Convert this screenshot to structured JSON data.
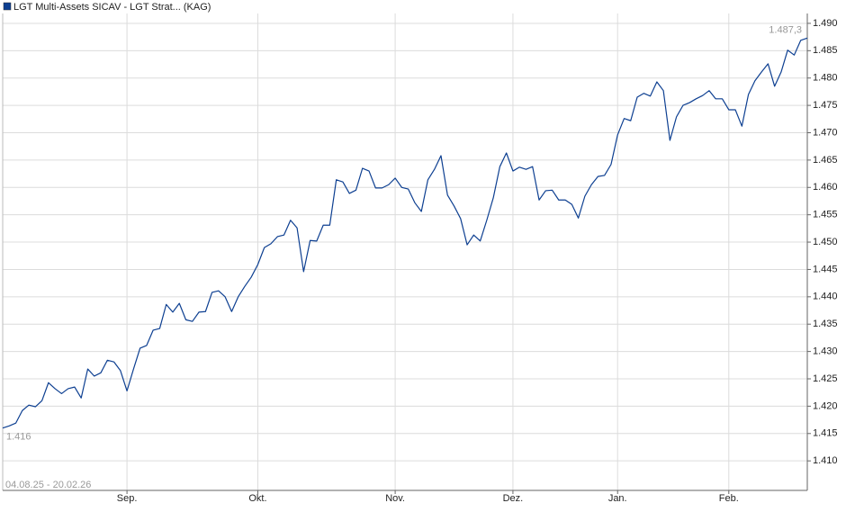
{
  "chart_data": {
    "type": "line",
    "legend_title": "LGT Multi-Assets SICAV - LGT Strat... (KAG)",
    "date_range": "04.08.25 - 20.02.26",
    "categories": [
      null,
      null,
      null,
      null,
      null,
      null,
      null,
      null,
      null,
      null,
      null,
      null,
      null,
      null,
      null,
      null,
      null,
      null,
      null,
      "Sep.",
      null,
      null,
      null,
      null,
      null,
      null,
      null,
      null,
      null,
      null,
      null,
      null,
      null,
      null,
      null,
      null,
      null,
      null,
      null,
      "Okt.",
      null,
      null,
      null,
      null,
      null,
      null,
      null,
      null,
      null,
      null,
      null,
      null,
      null,
      null,
      null,
      null,
      null,
      null,
      null,
      null,
      "Nov.",
      null,
      null,
      null,
      null,
      null,
      null,
      null,
      null,
      null,
      null,
      null,
      null,
      null,
      null,
      null,
      null,
      null,
      "Dez.",
      null,
      null,
      null,
      null,
      null,
      null,
      null,
      null,
      null,
      null,
      null,
      null,
      null,
      null,
      null,
      "Jan.",
      null,
      null,
      null,
      null,
      null,
      null,
      null,
      null,
      null,
      null,
      null,
      null,
      null,
      null,
      null,
      null,
      "Feb.",
      null,
      null,
      null,
      null,
      null,
      null,
      null,
      null,
      null,
      null,
      null,
      null
    ],
    "series": [
      {
        "name": "LGT Multi-Assets SICAV - LGT Strat... (KAG)",
        "color": "#0d3f91",
        "values": [
          1416,
          1416.4,
          1416.9,
          1419.2,
          1420.2,
          1419.9,
          1421.0,
          1424.3,
          1423.2,
          1422.3,
          1423.2,
          1423.5,
          1421.5,
          1426.8,
          1425.5,
          1426.1,
          1428.4,
          1428.1,
          1426.5,
          1422.8,
          1426.8,
          1430.6,
          1431.1,
          1433.9,
          1434.2,
          1438.6,
          1437.2,
          1438.8,
          1435.8,
          1435.5,
          1437.2,
          1437.3,
          1440.8,
          1441.1,
          1440.0,
          1437.3,
          1440.0,
          1441.9,
          1443.6,
          1445.9,
          1449.0,
          1449.7,
          1451.0,
          1451.3,
          1454.0,
          1452.6,
          1444.6,
          1450.3,
          1450.2,
          1453.1,
          1453.1,
          1461.4,
          1461.0,
          1458.9,
          1459.5,
          1463.5,
          1463.0,
          1459.9,
          1459.9,
          1460.5,
          1461.7,
          1460.0,
          1459.7,
          1457.2,
          1455.6,
          1461.4,
          1463.3,
          1465.8,
          1458.6,
          1456.6,
          1454.3,
          1449.5,
          1451.3,
          1450.2,
          1454.0,
          1458.1,
          1463.8,
          1466.3,
          1463.0,
          1463.7,
          1463.3,
          1463.8,
          1457.7,
          1459.4,
          1459.5,
          1457.7,
          1457.7,
          1456.9,
          1454.4,
          1458.4,
          1460.5,
          1462.0,
          1462.2,
          1464.2,
          1469.6,
          1472.6,
          1472.2,
          1476.5,
          1477.2,
          1476.7,
          1479.3,
          1477.7,
          1468.6,
          1472.9,
          1475.0,
          1475.5,
          1476.2,
          1476.8,
          1477.7,
          1476.2,
          1476.2,
          1474.2,
          1474.2,
          1471.2,
          1477.0,
          1479.5,
          1481.1,
          1482.6,
          1478.5,
          1481.1,
          1485.1,
          1484.2,
          1486.9,
          1487.3
        ]
      }
    ],
    "annotations": [
      {
        "text": "1.487,3",
        "value": 1487.3
      },
      {
        "text": "1.416",
        "value": 1416
      }
    ],
    "ylim": [
      1404.6,
      1491.8
    ],
    "yticks": [
      {
        "value": 1410,
        "label": "1.410"
      },
      {
        "value": 1415,
        "label": "1.415"
      },
      {
        "value": 1420,
        "label": "1.420"
      },
      {
        "value": 1425,
        "label": "1.425"
      },
      {
        "value": 1430,
        "label": "1.430"
      },
      {
        "value": 1435,
        "label": "1.435"
      },
      {
        "value": 1440,
        "label": "1.440"
      },
      {
        "value": 1445,
        "label": "1.445"
      },
      {
        "value": 1450,
        "label": "1.450"
      },
      {
        "value": 1455,
        "label": "1.455"
      },
      {
        "value": 1460,
        "label": "1.460"
      },
      {
        "value": 1465,
        "label": "1.465"
      },
      {
        "value": 1470,
        "label": "1.470"
      },
      {
        "value": 1475,
        "label": "1.475"
      },
      {
        "value": 1480,
        "label": "1.480"
      },
      {
        "value": 1485,
        "label": "1.485"
      },
      {
        "value": 1490,
        "label": "1.490"
      }
    ],
    "grid": true
  }
}
